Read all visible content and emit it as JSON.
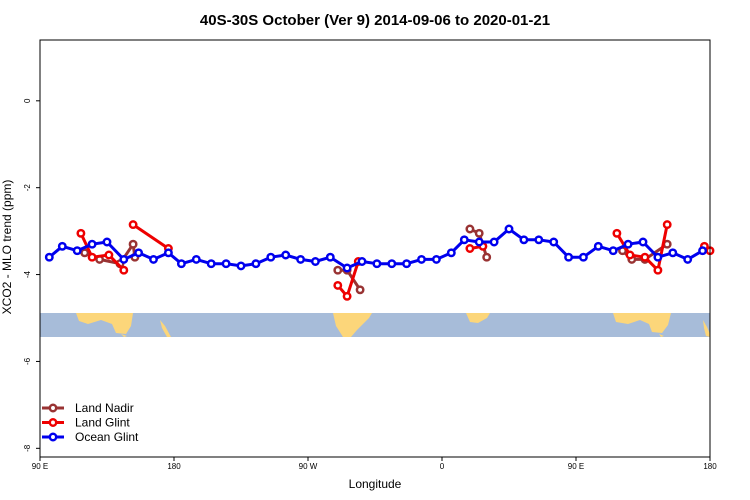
{
  "chart_data": {
    "type": "line",
    "title": "40S-30S October (Ver 9)   2014-09-06 to 2020-01-21",
    "xlabel": "Longitude",
    "ylabel": "XCO2 - MLO trend (ppm)",
    "xlim": [
      0,
      360
    ],
    "ylim": [
      -8.2,
      1.4
    ],
    "x_ticks": [
      {
        "pos": 0,
        "label": "90 E"
      },
      {
        "pos": 72,
        "label": "180"
      },
      {
        "pos": 144,
        "label": "90 W"
      },
      {
        "pos": 216,
        "label": "0"
      },
      {
        "pos": 288,
        "label": "90 E"
      },
      {
        "pos": 360,
        "label": "180"
      }
    ],
    "y_ticks": [
      0,
      -2,
      -4,
      -6,
      -8
    ],
    "grid": false,
    "legend_position": "bottom-left",
    "colors": {
      "land_nadir": "#993333",
      "land_glint": "#ee0000",
      "ocean_glint": "#0000ee",
      "ocean_map": "#a7bcd9",
      "land_map": "#fcd67a"
    },
    "series": [
      {
        "name": "Land Nadir",
        "color": "#993333",
        "segments": [
          [
            [
              24,
              -3.5
            ],
            [
              32,
              -3.65
            ],
            [
              43,
              -3.75
            ],
            [
              50,
              -3.3
            ],
            [
              51,
              -3.6
            ]
          ],
          [
            [
              160,
              -3.9
            ],
            [
              165,
              -3.9
            ],
            [
              172,
              -4.35
            ]
          ],
          [
            [
              231,
              -2.95
            ],
            [
              236,
              -3.05
            ],
            [
              240,
              -3.6
            ]
          ],
          [
            [
              313,
              -3.45
            ],
            [
              318,
              -3.65
            ],
            [
              325,
              -3.65
            ],
            [
              337,
              -3.3
            ]
          ]
        ]
      },
      {
        "name": "Land Glint",
        "color": "#ee0000",
        "segments": [
          [
            [
              22,
              -3.05
            ],
            [
              28,
              -3.6
            ],
            [
              37,
              -3.55
            ],
            [
              45,
              -3.9
            ]
          ],
          [
            [
              50,
              -2.85
            ],
            [
              69,
              -3.4
            ]
          ],
          [
            [
              160,
              -4.25
            ],
            [
              165,
              -4.5
            ],
            [
              171,
              -3.7
            ]
          ],
          [
            [
              231,
              -3.4
            ],
            [
              238,
              -3.35
            ]
          ],
          [
            [
              310,
              -3.05
            ],
            [
              317,
              -3.55
            ],
            [
              325,
              -3.6
            ],
            [
              332,
              -3.9
            ],
            [
              337,
              -2.85
            ]
          ],
          [
            [
              357,
              -3.35
            ],
            [
              360,
              -3.45
            ]
          ]
        ]
      },
      {
        "name": "Ocean Glint",
        "color": "#0000ee",
        "segments": [
          [
            [
              5,
              -3.6
            ],
            [
              12,
              -3.35
            ],
            [
              20,
              -3.45
            ],
            [
              28,
              -3.3
            ],
            [
              36,
              -3.25
            ],
            [
              45,
              -3.65
            ],
            [
              53,
              -3.5
            ],
            [
              61,
              -3.65
            ],
            [
              69,
              -3.5
            ],
            [
              76,
              -3.75
            ],
            [
              84,
              -3.65
            ],
            [
              92,
              -3.75
            ],
            [
              100,
              -3.75
            ],
            [
              108,
              -3.8
            ],
            [
              116,
              -3.75
            ],
            [
              124,
              -3.6
            ],
            [
              132,
              -3.55
            ],
            [
              140,
              -3.65
            ],
            [
              148,
              -3.7
            ],
            [
              156,
              -3.6
            ],
            [
              165,
              -3.85
            ],
            [
              173,
              -3.7
            ],
            [
              181,
              -3.75
            ],
            [
              189,
              -3.75
            ],
            [
              197,
              -3.75
            ],
            [
              205,
              -3.65
            ],
            [
              213,
              -3.65
            ],
            [
              221,
              -3.5
            ],
            [
              228,
              -3.2
            ],
            [
              236,
              -3.25
            ],
            [
              244,
              -3.25
            ],
            [
              252,
              -2.95
            ],
            [
              260,
              -3.2
            ],
            [
              268,
              -3.2
            ],
            [
              276,
              -3.25
            ],
            [
              284,
              -3.6
            ],
            [
              292,
              -3.6
            ],
            [
              300,
              -3.35
            ],
            [
              308,
              -3.45
            ],
            [
              316,
              -3.3
            ],
            [
              324,
              -3.25
            ],
            [
              332,
              -3.6
            ],
            [
              340,
              -3.5
            ],
            [
              348,
              -3.65
            ],
            [
              356,
              -3.45
            ]
          ]
        ]
      }
    ]
  }
}
